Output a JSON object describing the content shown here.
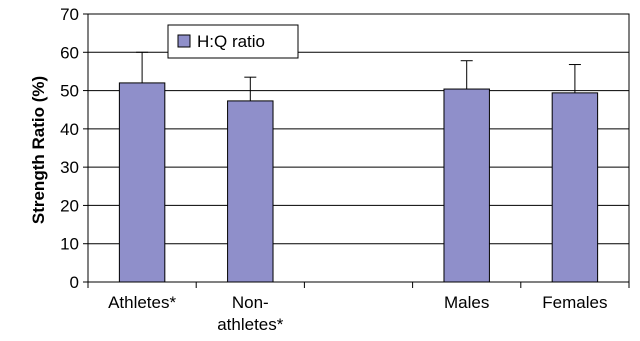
{
  "chart_data": {
    "type": "bar",
    "categories": [
      [
        "Athletes*"
      ],
      [
        "Non-",
        "athletes*"
      ],
      [
        ""
      ],
      [
        "Males"
      ],
      [
        "Females"
      ]
    ],
    "series": [
      {
        "name": "H:Q ratio",
        "values": [
          52,
          47.3,
          null,
          50.4,
          49.4
        ],
        "error_plus": [
          8,
          6.2,
          null,
          7.4,
          7.4
        ],
        "color": "#8f8fca"
      }
    ],
    "ylabel": "Strength Ratio (%)",
    "xlabel": "",
    "ylim": [
      0,
      70
    ],
    "yticks": [
      0,
      10,
      20,
      30,
      40,
      50,
      60,
      70
    ],
    "grid": true,
    "legend_position": "top-left"
  }
}
